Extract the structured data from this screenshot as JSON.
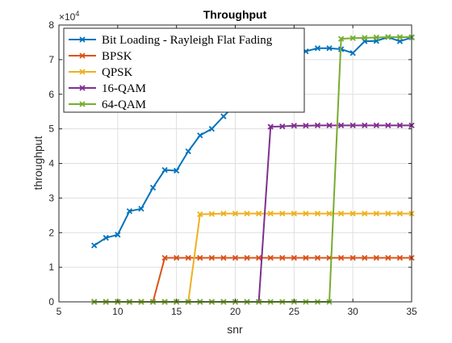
{
  "chart_data": {
    "type": "line",
    "title": "Throughput",
    "xlabel": "snr",
    "ylabel": "throughput",
    "xlim": [
      5,
      35
    ],
    "ylim": [
      0,
      80000
    ],
    "xticks": [
      5,
      10,
      15,
      20,
      25,
      30,
      35
    ],
    "yticks": [
      0,
      10000,
      20000,
      30000,
      40000,
      50000,
      60000,
      70000,
      80000
    ],
    "ytick_labels": [
      "0",
      "1",
      "2",
      "3",
      "4",
      "5",
      "6",
      "7",
      "8"
    ],
    "y_exponent_base": "×10",
    "y_exponent_power": "4",
    "grid": true,
    "legend_position": "top-left",
    "series": [
      {
        "name": "Bit Loading - Rayleigh Flat Fading",
        "color": "#0072BD",
        "x": [
          8,
          9,
          10,
          11,
          12,
          13,
          14,
          15,
          16,
          17,
          18,
          19,
          20,
          21,
          22,
          23,
          24,
          25,
          26,
          27,
          28,
          29,
          30,
          31,
          32,
          33,
          34,
          35
        ],
        "values": [
          16300,
          18500,
          19400,
          26200,
          26900,
          33000,
          38100,
          37900,
          43500,
          48100,
          50000,
          53600,
          57000,
          60500,
          64000,
          67500,
          70000,
          71500,
          72400,
          73300,
          73300,
          73000,
          71900,
          75300,
          75400,
          76500,
          75300,
          76400
        ]
      },
      {
        "name": "BPSK",
        "color": "#D95319",
        "x": [
          8,
          9,
          10,
          11,
          12,
          13,
          14,
          15,
          16,
          17,
          18,
          19,
          20,
          21,
          22,
          23,
          24,
          25,
          26,
          27,
          28,
          29,
          30,
          31,
          32,
          33,
          34,
          35
        ],
        "values": [
          0,
          0,
          0,
          0,
          0,
          0,
          12700,
          12700,
          12700,
          12700,
          12700,
          12700,
          12700,
          12700,
          12700,
          12700,
          12700,
          12700,
          12700,
          12700,
          12700,
          12700,
          12700,
          12700,
          12700,
          12700,
          12700,
          12700
        ]
      },
      {
        "name": "QPSK",
        "color": "#EDB120",
        "x": [
          8,
          9,
          10,
          11,
          12,
          13,
          14,
          15,
          16,
          17,
          18,
          19,
          20,
          21,
          22,
          23,
          24,
          25,
          26,
          27,
          28,
          29,
          30,
          31,
          32,
          33,
          34,
          35
        ],
        "values": [
          0,
          0,
          0,
          0,
          0,
          0,
          0,
          0,
          0,
          25300,
          25400,
          25500,
          25500,
          25500,
          25500,
          25500,
          25500,
          25500,
          25500,
          25500,
          25500,
          25500,
          25500,
          25500,
          25500,
          25500,
          25500,
          25500
        ]
      },
      {
        "name": "16-QAM",
        "color": "#7E2F8E",
        "x": [
          8,
          9,
          10,
          11,
          12,
          13,
          14,
          15,
          16,
          17,
          18,
          19,
          20,
          21,
          22,
          23,
          24,
          25,
          26,
          27,
          28,
          29,
          30,
          31,
          32,
          33,
          34,
          35
        ],
        "values": [
          0,
          0,
          0,
          0,
          0,
          0,
          0,
          0,
          0,
          0,
          0,
          0,
          0,
          0,
          0,
          50600,
          50700,
          50900,
          50900,
          51000,
          51000,
          51000,
          51000,
          51000,
          51000,
          51000,
          51000,
          51000
        ]
      },
      {
        "name": "64-QAM",
        "color": "#77AC30",
        "x": [
          8,
          9,
          10,
          11,
          12,
          13,
          14,
          15,
          16,
          17,
          18,
          19,
          20,
          21,
          22,
          23,
          24,
          25,
          26,
          27,
          28,
          29,
          30,
          31,
          32,
          33,
          34,
          35
        ],
        "values": [
          0,
          0,
          0,
          0,
          0,
          0,
          0,
          0,
          0,
          0,
          0,
          0,
          0,
          0,
          0,
          0,
          0,
          0,
          0,
          0,
          0,
          76000,
          76200,
          76300,
          76400,
          76500,
          76500,
          76500
        ]
      }
    ]
  }
}
